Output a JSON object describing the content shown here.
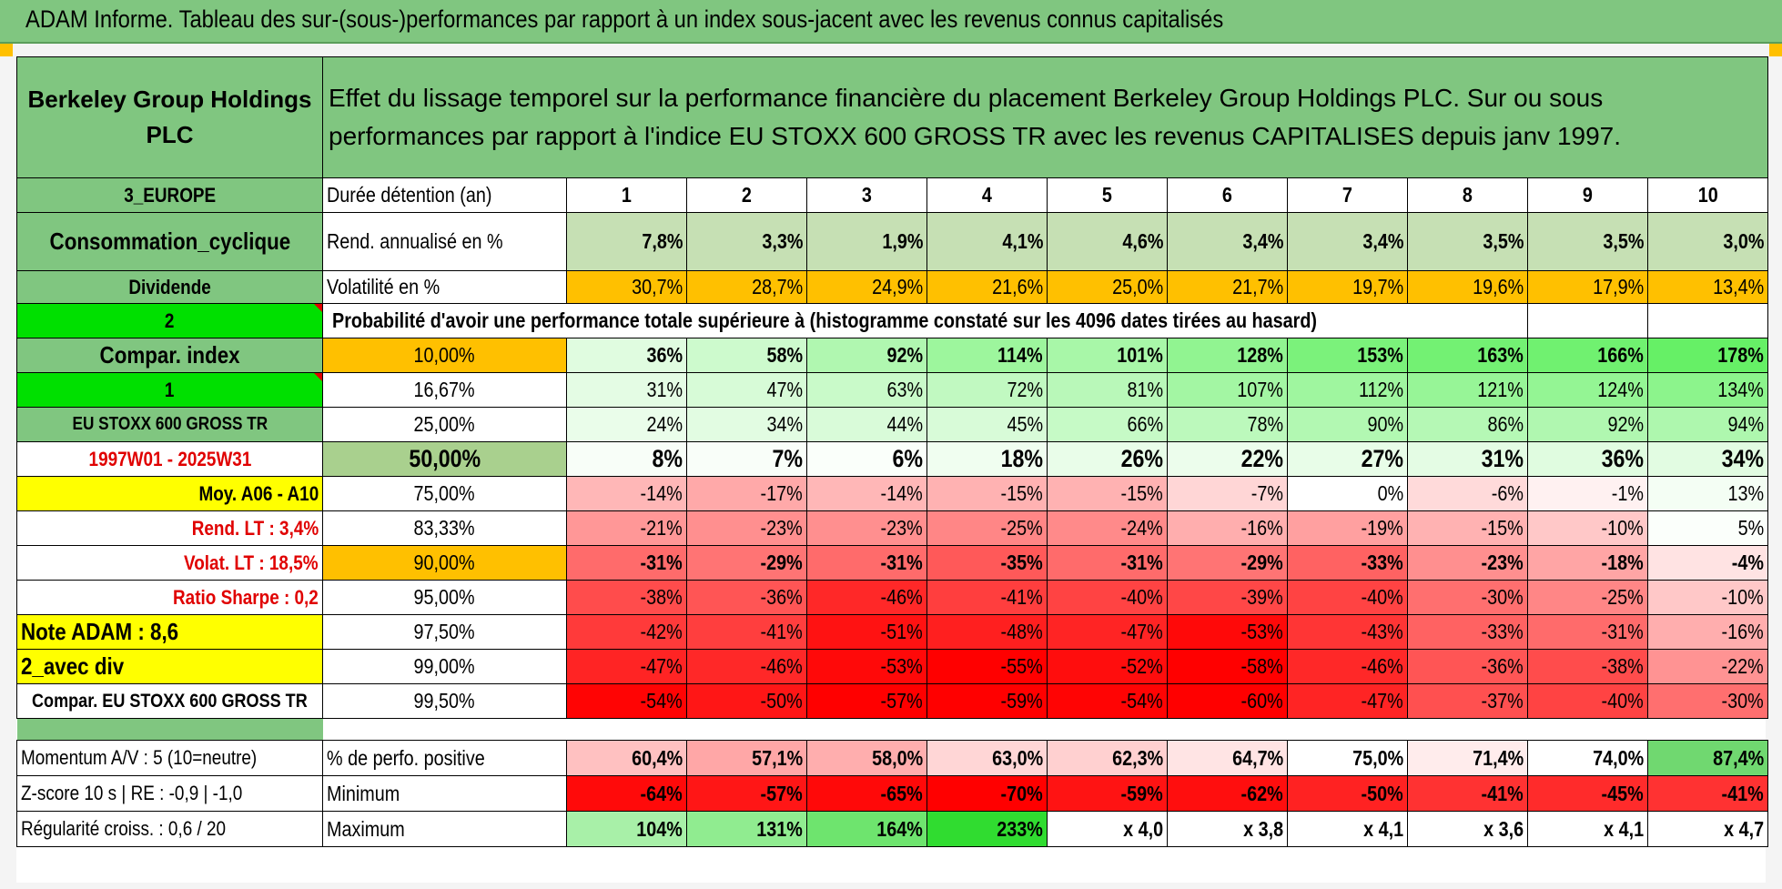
{
  "title": "ADAM Informe. Tableau des sur-(sous-)performances par rapport à un index sous-jacent avec les revenus connus capitalisés",
  "company": "Berkeley Group Holdings PLC",
  "description": "Effet du lissage temporel sur la performance financière du placement Berkeley Group Holdings PLC. Sur ou sous performances par rapport à l'indice EU STOXX 600 GROSS TR avec les revenus CAPITALISES depuis janv 1997.",
  "left_panel": {
    "region": "3_EUROPE",
    "sector": "Consommation_cyclique",
    "type": "Dividende",
    "param_a": "2",
    "compar_label": "Compar. index",
    "param_b": "1",
    "index_name": "EU STOXX 600 GROSS TR",
    "period": "1997W01 - 2025W31",
    "moy": "Moy. A06 - A10",
    "rend_lt": "Rend. LT :    3,4%",
    "volat_lt": "Volat. LT :    18,5%",
    "sharpe": "Ratio Sharpe :    0,2",
    "note": "Note ADAM : 8,6",
    "div_mode": "2_avec div",
    "compar_full": "Compar. EU STOXX 600 GROSS TR",
    "momentum": "Momentum A/V : 5 (10=neutre)",
    "zscore": "Z-score 10 s | RE : -0,9 | -1,0",
    "regularite": "Régularité croiss. : 0,6 / 20"
  },
  "header": {
    "duration_label": "Durée détention (an)",
    "years": [
      "1",
      "2",
      "3",
      "4",
      "5",
      "6",
      "7",
      "8",
      "9",
      "10"
    ]
  },
  "rend": {
    "label": "Rend. annualisé en %",
    "values": [
      "7,8%",
      "3,3%",
      "1,9%",
      "4,1%",
      "4,6%",
      "3,4%",
      "3,4%",
      "3,5%",
      "3,5%",
      "3,0%"
    ]
  },
  "vol": {
    "label": "Volatilité en %",
    "values": [
      "30,7%",
      "28,7%",
      "24,9%",
      "21,6%",
      "25,0%",
      "21,7%",
      "19,7%",
      "19,6%",
      "17,9%",
      "13,4%"
    ]
  },
  "prob_title": "Probabilité d'avoir une performance totale supérieure à (histogramme constaté sur les 4096 dates tirées au hasard)",
  "quantiles": [
    {
      "pct": "10,00%",
      "values": [
        "36%",
        "58%",
        "92%",
        "114%",
        "101%",
        "128%",
        "153%",
        "163%",
        "166%",
        "178%"
      ]
    },
    {
      "pct": "16,67%",
      "values": [
        "31%",
        "47%",
        "63%",
        "72%",
        "81%",
        "107%",
        "112%",
        "121%",
        "124%",
        "134%"
      ]
    },
    {
      "pct": "25,00%",
      "values": [
        "24%",
        "34%",
        "44%",
        "45%",
        "66%",
        "78%",
        "90%",
        "86%",
        "92%",
        "94%"
      ]
    },
    {
      "pct": "50,00%",
      "values": [
        "8%",
        "7%",
        "6%",
        "18%",
        "26%",
        "22%",
        "27%",
        "31%",
        "36%",
        "34%"
      ]
    },
    {
      "pct": "75,00%",
      "values": [
        "-14%",
        "-17%",
        "-14%",
        "-15%",
        "-15%",
        "-7%",
        "0%",
        "-6%",
        "-1%",
        "13%"
      ]
    },
    {
      "pct": "83,33%",
      "values": [
        "-21%",
        "-23%",
        "-23%",
        "-25%",
        "-24%",
        "-16%",
        "-19%",
        "-15%",
        "-10%",
        "5%"
      ]
    },
    {
      "pct": "90,00%",
      "values": [
        "-31%",
        "-29%",
        "-31%",
        "-35%",
        "-31%",
        "-29%",
        "-33%",
        "-23%",
        "-18%",
        "-4%"
      ]
    },
    {
      "pct": "95,00%",
      "values": [
        "-38%",
        "-36%",
        "-46%",
        "-41%",
        "-40%",
        "-39%",
        "-40%",
        "-30%",
        "-25%",
        "-10%"
      ]
    },
    {
      "pct": "97,50%",
      "values": [
        "-42%",
        "-41%",
        "-51%",
        "-48%",
        "-47%",
        "-53%",
        "-43%",
        "-33%",
        "-31%",
        "-16%"
      ]
    },
    {
      "pct": "99,00%",
      "values": [
        "-47%",
        "-46%",
        "-53%",
        "-55%",
        "-52%",
        "-58%",
        "-46%",
        "-36%",
        "-38%",
        "-22%"
      ]
    },
    {
      "pct": "99,50%",
      "values": [
        "-54%",
        "-50%",
        "-57%",
        "-59%",
        "-54%",
        "-60%",
        "-47%",
        "-37%",
        "-40%",
        "-30%"
      ]
    }
  ],
  "positive": {
    "label": "% de perfo. positive",
    "values": [
      "60,4%",
      "57,1%",
      "58,0%",
      "63,0%",
      "62,3%",
      "64,7%",
      "75,0%",
      "71,4%",
      "74,0%",
      "87,4%"
    ]
  },
  "minimum": {
    "label": "Minimum",
    "values": [
      "-64%",
      "-57%",
      "-65%",
      "-70%",
      "-59%",
      "-62%",
      "-50%",
      "-41%",
      "-45%",
      "-41%"
    ]
  },
  "maximum": {
    "label": "Maximum",
    "values": [
      "104%",
      "131%",
      "164%",
      "233%",
      "x 4,0",
      "x 3,8",
      "x 4,1",
      "x 3,6",
      "x 4,1",
      "x 4,7"
    ]
  },
  "colors": {
    "header_green": "#80c680",
    "bright_green": "#00e000",
    "yellow": "#ffff00",
    "orange": "#ffc000",
    "red_text": "#e00000",
    "strong_red": "#ff0000",
    "light_green": "#c6e0b4"
  }
}
